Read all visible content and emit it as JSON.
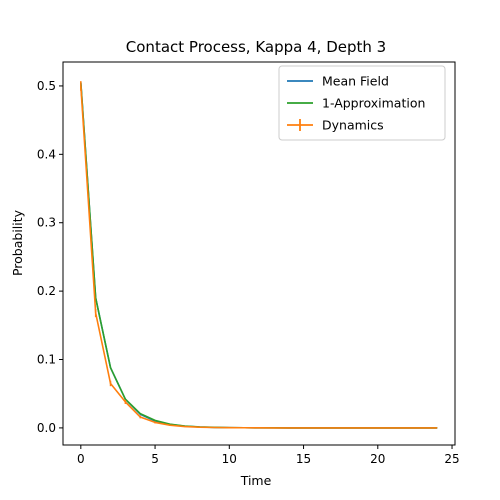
{
  "chart_data": {
    "type": "line",
    "title": "Contact Process, Kappa 4, Depth 3",
    "xlabel": "Time",
    "ylabel": "Probability",
    "xlim": [
      -1.2,
      25.2
    ],
    "ylim": [
      -0.025,
      0.535
    ],
    "xticks": [
      0,
      5,
      10,
      15,
      20,
      25
    ],
    "xtick_labels": [
      "0",
      "5",
      "10",
      "15",
      "20",
      "25"
    ],
    "yticks": [
      0.0,
      0.1,
      0.2,
      0.3,
      0.4,
      0.5
    ],
    "ytick_labels": [
      "0.0",
      "0.1",
      "0.2",
      "0.3",
      "0.4",
      "0.5"
    ],
    "grid": false,
    "legend": {
      "position": "top-right"
    },
    "series": [
      {
        "name": "Mean Field",
        "color": "#1f77b4",
        "style": "line",
        "x": [
          0,
          1,
          2,
          3,
          4,
          5,
          6,
          7,
          8,
          9,
          10,
          11,
          12,
          13,
          14,
          15,
          16,
          17,
          18,
          19,
          20,
          21,
          22,
          23,
          24
        ],
        "y": [
          0.505,
          0.19,
          0.088,
          0.042,
          0.02,
          0.01,
          0.005,
          0.0025,
          0.0013,
          0.0007,
          0.0004,
          0.0002,
          0.0001,
          0.0001,
          0,
          0,
          0,
          0,
          0,
          0,
          0,
          0,
          0,
          0,
          0
        ]
      },
      {
        "name": "1-Approximation",
        "color": "#2ca02c",
        "style": "line",
        "x": [
          0,
          1,
          2,
          3,
          4,
          5,
          6,
          7,
          8,
          9,
          10,
          11,
          12,
          13,
          14,
          15,
          16,
          17,
          18,
          19,
          20,
          21,
          22,
          23,
          24
        ],
        "y": [
          0.505,
          0.19,
          0.088,
          0.042,
          0.021,
          0.011,
          0.0055,
          0.0028,
          0.0014,
          0.0008,
          0.0004,
          0.0002,
          0.0001,
          0.0001,
          0,
          0,
          0,
          0,
          0,
          0,
          0,
          0,
          0,
          0,
          0
        ]
      },
      {
        "name": "Dynamics",
        "color": "#ff7f0e",
        "style": "errorbar",
        "x": [
          0,
          1,
          2,
          3,
          4,
          5,
          6,
          7,
          8,
          9,
          10,
          11,
          12,
          13,
          14,
          15,
          16,
          17,
          18,
          19,
          20,
          21,
          22,
          23,
          24
        ],
        "y": [
          0.5,
          0.168,
          0.065,
          0.038,
          0.016,
          0.008,
          0.004,
          0.002,
          0.001,
          0.0006,
          0.0003,
          0.0002,
          0.0001,
          0,
          0,
          0,
          0,
          0,
          0,
          0,
          0,
          0,
          0,
          0,
          0
        ],
        "yerr": [
          0.007,
          0.006,
          0.004,
          0.003,
          0.002,
          0.0015,
          0.001,
          0.0008,
          0.0005,
          0.0004,
          0.0003,
          0.0002,
          0.0001,
          0.0001,
          0.0001,
          0.0001,
          0.0001,
          0.0001,
          0.0001,
          0.0001,
          0.0001,
          0.0001,
          0.0001,
          0.0001,
          0.0001
        ]
      }
    ]
  }
}
